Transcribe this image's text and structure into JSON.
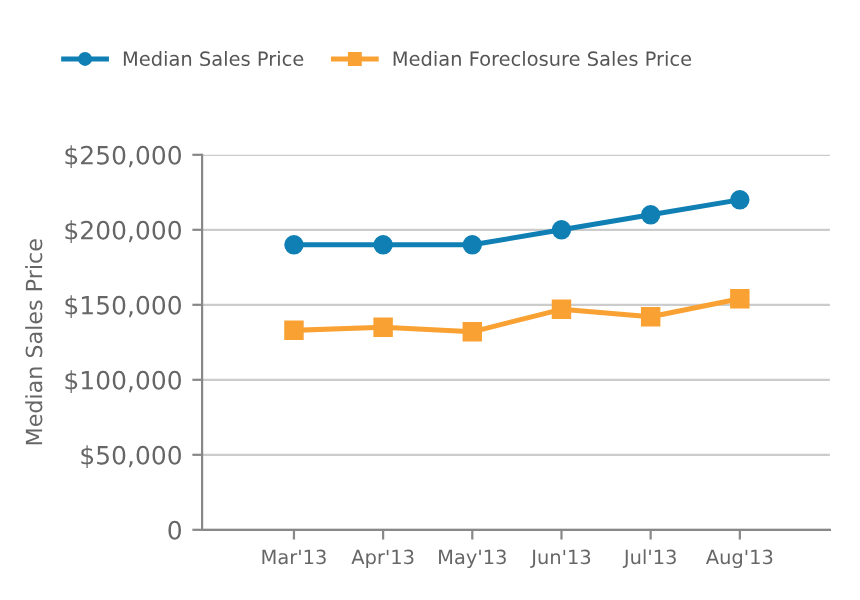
{
  "chart_data": {
    "type": "line",
    "ylabel": "Median Sales Price",
    "categories": [
      "Mar'13",
      "Apr'13",
      "May'13",
      "Jun'13",
      "Jul'13",
      "Aug'13"
    ],
    "series": [
      {
        "name": "Median Sales Price",
        "color": "#0f7fb4",
        "marker": "circle",
        "values": [
          190000,
          190000,
          190000,
          200000,
          210000,
          220000
        ]
      },
      {
        "name": "Median Foreclosure Sales Price",
        "color": "#f9a133",
        "marker": "square",
        "values": [
          133000,
          135000,
          132000,
          147000,
          142000,
          154000
        ]
      }
    ],
    "ylim": [
      0,
      250000
    ],
    "yticks": [
      {
        "value": 0,
        "label": "0"
      },
      {
        "value": 50000,
        "label": "$50,000"
      },
      {
        "value": 100000,
        "label": "$100,000"
      },
      {
        "value": 150000,
        "label": "$150,000"
      },
      {
        "value": 200000,
        "label": "$200,000"
      },
      {
        "value": 250000,
        "label": "$250,000"
      }
    ],
    "grid": "y",
    "legend": "top",
    "line_style": "solid"
  }
}
